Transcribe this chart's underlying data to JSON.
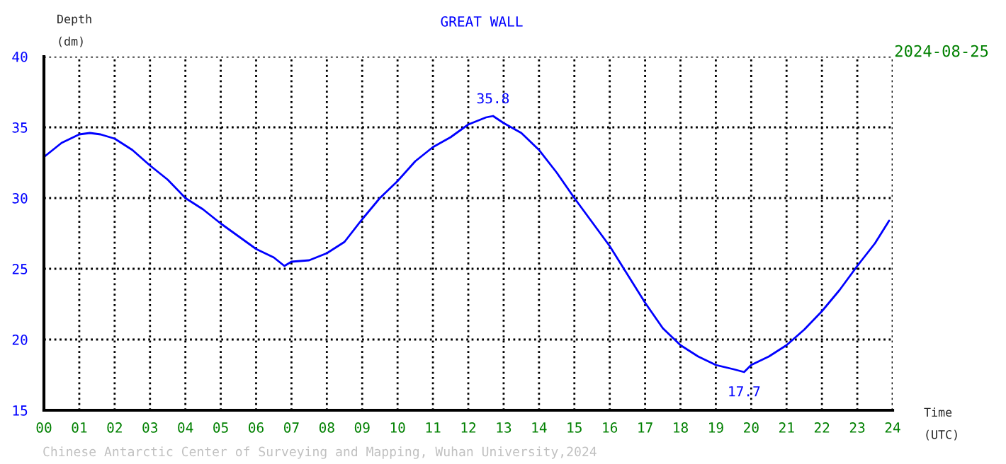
{
  "chart_data": {
    "type": "line",
    "title": "GREAT WALL",
    "subtitle": "2024-08-25",
    "xlabel": "Time\n(UTC)",
    "ylabel": "Depth\n(dm)",
    "annotations": [
      {
        "text": "35.8",
        "x": 12.7,
        "y": 35.8
      },
      {
        "text": "17.7",
        "x": 19.8,
        "y": 17.7
      },
      "Chinese Antarctic Center of Surveying and Mapping, Wuhan University,2024"
    ],
    "series": [
      {
        "color": "#0000ff",
        "x": [
          0,
          0.3,
          0.5,
          1.0,
          1.3,
          1.6,
          2.0,
          2.5,
          3.0,
          3.5,
          4.0,
          4.5,
          5.0,
          5.5,
          6.0,
          6.5,
          6.8,
          7.0,
          7.5,
          8.0,
          8.5,
          9.0,
          9.5,
          10.0,
          10.5,
          11.0,
          11.5,
          12.0,
          12.5,
          12.7,
          13.0,
          13.5,
          14.0,
          14.5,
          15.0,
          15.5,
          16.0,
          16.5,
          17.0,
          17.5,
          18.0,
          18.5,
          19.0,
          19.5,
          19.8,
          20.0,
          20.5,
          21.0,
          21.5,
          22.0,
          22.5,
          23.0,
          23.5,
          23.9
        ],
        "values": [
          32.9,
          33.5,
          33.9,
          34.5,
          34.6,
          34.5,
          34.2,
          33.4,
          32.3,
          31.3,
          30.0,
          29.2,
          28.2,
          27.3,
          26.4,
          25.8,
          25.2,
          25.5,
          25.6,
          26.1,
          26.9,
          28.5,
          30.0,
          31.2,
          32.6,
          33.6,
          34.3,
          35.2,
          35.7,
          35.8,
          35.3,
          34.6,
          33.4,
          31.8,
          30.0,
          28.3,
          26.6,
          24.6,
          22.6,
          20.8,
          19.6,
          18.8,
          18.2,
          17.9,
          17.7,
          18.2,
          18.8,
          19.6,
          20.7,
          22.0,
          23.5,
          25.2,
          26.8,
          28.4
        ]
      }
    ],
    "xlim": [
      0,
      24
    ],
    "xticks": [
      {
        "value": 0,
        "label": "00"
      },
      {
        "value": 1,
        "label": "01"
      },
      {
        "value": 2,
        "label": "02"
      },
      {
        "value": 3,
        "label": "03"
      },
      {
        "value": 4,
        "label": "04"
      },
      {
        "value": 5,
        "label": "05"
      },
      {
        "value": 6,
        "label": "06"
      },
      {
        "value": 7,
        "label": "07"
      },
      {
        "value": 8,
        "label": "08"
      },
      {
        "value": 9,
        "label": "09"
      },
      {
        "value": 10,
        "label": "10"
      },
      {
        "value": 11,
        "label": "11"
      },
      {
        "value": 12,
        "label": "12"
      },
      {
        "value": 13,
        "label": "13"
      },
      {
        "value": 14,
        "label": "14"
      },
      {
        "value": 15,
        "label": "15"
      },
      {
        "value": 16,
        "label": "16"
      },
      {
        "value": 17,
        "label": "17"
      },
      {
        "value": 18,
        "label": "18"
      },
      {
        "value": 19,
        "label": "19"
      },
      {
        "value": 20,
        "label": "20"
      },
      {
        "value": 21,
        "label": "21"
      },
      {
        "value": 22,
        "label": "22"
      },
      {
        "value": 23,
        "label": "23"
      },
      {
        "value": 24,
        "label": "24"
      }
    ],
    "ylim": [
      15,
      40
    ],
    "yticks": [
      15,
      20,
      25,
      30,
      35,
      40
    ],
    "grid": true,
    "legend": false,
    "marker": "none",
    "line_style": "solid"
  }
}
